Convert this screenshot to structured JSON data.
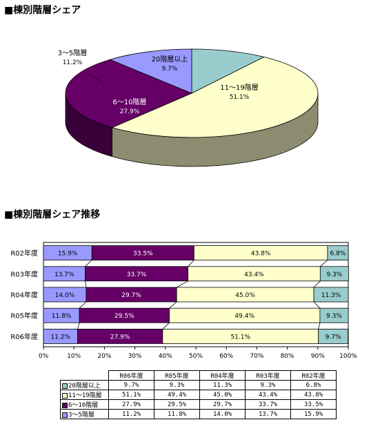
{
  "pie_section": {
    "title": "■棟別階層シェア"
  },
  "bar_section": {
    "title": "■棟別階層シェア推移"
  },
  "colors": {
    "c20": "#99CCCC",
    "c11": "#FFFFCC",
    "c6": "#660066",
    "c3": "#9999FF"
  },
  "chart_data": [
    {
      "type": "pie",
      "title": "",
      "slices": [
        {
          "label": "20階層以上",
          "value": 9.7,
          "value_label": "9.7%",
          "color": "#99CCCC"
        },
        {
          "label": "11～19階層",
          "value": 51.1,
          "value_label": "51.1%",
          "color": "#FFFFCC"
        },
        {
          "label": "6～10階層",
          "value": 27.9,
          "value_label": "27.9%",
          "color": "#660066"
        },
        {
          "label": "3～5階層",
          "value": 11.2,
          "value_label": "11.2%",
          "color": "#9999FF"
        }
      ]
    },
    {
      "type": "bar",
      "orientation": "horizontal",
      "stacked": "percent",
      "categories": [
        "R02年度",
        "R03年度",
        "R04年度",
        "R05年度",
        "R06年度"
      ],
      "series": [
        {
          "name": "3～5階層",
          "color": "#9999FF",
          "values": [
            15.9,
            13.7,
            14.0,
            11.8,
            11.2
          ]
        },
        {
          "name": "6～10階層",
          "color": "#660066",
          "values": [
            33.5,
            33.7,
            29.7,
            29.5,
            27.9
          ]
        },
        {
          "name": "11～19階層",
          "color": "#FFFFCC",
          "values": [
            43.8,
            43.4,
            45.0,
            49.4,
            51.1
          ]
        },
        {
          "name": "20階層以上",
          "color": "#99CCCC",
          "values": [
            6.8,
            9.3,
            11.3,
            9.3,
            9.7
          ]
        }
      ],
      "value_labels": [
        [
          "15.9%",
          "33.5%",
          "43.8%",
          "6.8%"
        ],
        [
          "13.7%",
          "33.7%",
          "43.4%",
          "9.3%"
        ],
        [
          "14.0%",
          "29.7%",
          "45.0%",
          "11.3%"
        ],
        [
          "11.8%",
          "29.5%",
          "49.4%",
          "9.3%"
        ],
        [
          "11.2%",
          "27.9%",
          "51.1%",
          "9.7%"
        ]
      ],
      "xlim": [
        0,
        100
      ],
      "xticks": [
        "0%",
        "10%",
        "20%",
        "30%",
        "40%",
        "50%",
        "60%",
        "70%",
        "80%",
        "90%",
        "100%"
      ],
      "series_lines": true,
      "grid": false,
      "legend": "table-below"
    }
  ],
  "data_table": {
    "columns": [
      "R06年度",
      "R05年度",
      "R04年度",
      "R03年度",
      "R02年度"
    ],
    "rows": [
      {
        "name": "20階層以上",
        "color": "#99CCCC",
        "cells": [
          "9.7%",
          "9.3%",
          "11.3%",
          "9.3%",
          "6.8%"
        ]
      },
      {
        "name": "11～19階層",
        "color": "#FFFFCC",
        "cells": [
          "51.1%",
          "49.4%",
          "45.0%",
          "43.4%",
          "43.8%"
        ]
      },
      {
        "name": "6～10階層",
        "color": "#660066",
        "cells": [
          "27.9%",
          "29.5%",
          "29.7%",
          "33.7%",
          "33.5%"
        ]
      },
      {
        "name": "3～5階層",
        "color": "#9999FF",
        "cells": [
          "11.2%",
          "11.8%",
          "14.0%",
          "13.7%",
          "15.9%"
        ]
      }
    ]
  }
}
